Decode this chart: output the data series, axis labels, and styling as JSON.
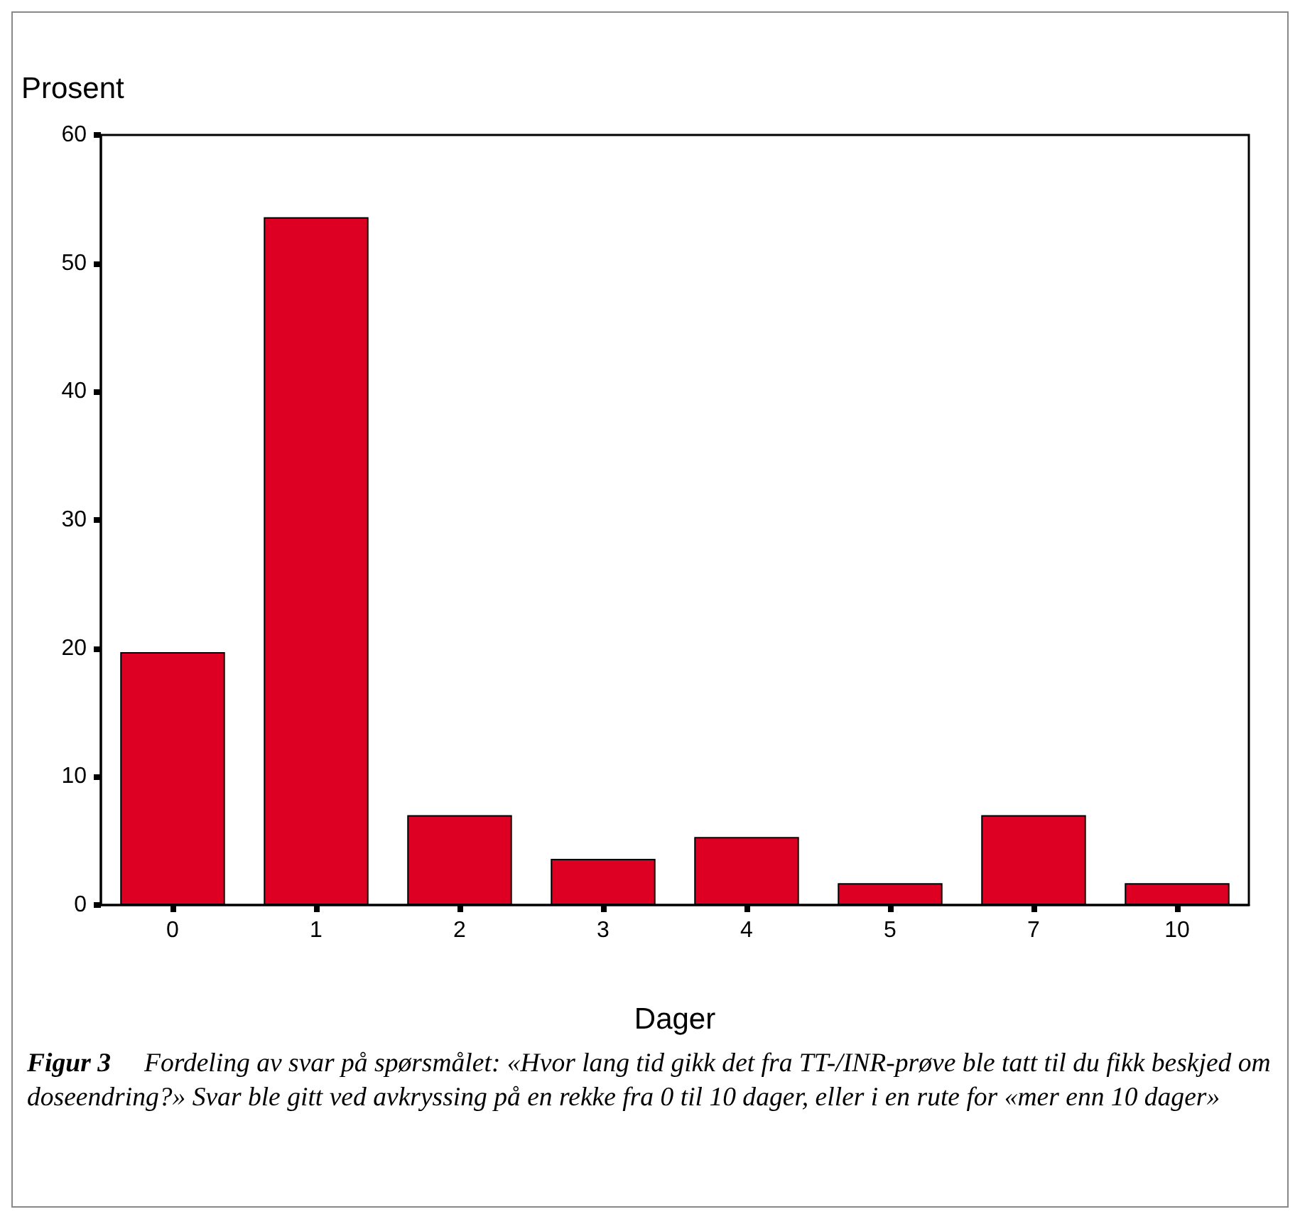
{
  "chart_data": {
    "type": "bar",
    "xlabel": "Dager",
    "ylabel": "Prosent",
    "categories": [
      "0",
      "1",
      "2",
      "3",
      "4",
      "5",
      "7",
      "10"
    ],
    "values": [
      19.7,
      53.6,
      7.0,
      3.6,
      5.3,
      1.7,
      7.0,
      1.7
    ],
    "color": "#de0023",
    "ylim": [
      0,
      60
    ],
    "yticks": [
      0,
      10,
      20,
      30,
      40,
      50,
      60
    ],
    "grid": false,
    "annotations": [
      "Figur 3",
      "Fordeling av svar på spørsmålet: «Hvor lang tid gikk det fra TT-/INR-prøve ble tatt til du fikk beskjed om doseendring?» Svar ble gitt ved avkryssing på en rekke fra 0 til 10 dager, eller i en rute for «mer enn 10 dager»"
    ]
  }
}
